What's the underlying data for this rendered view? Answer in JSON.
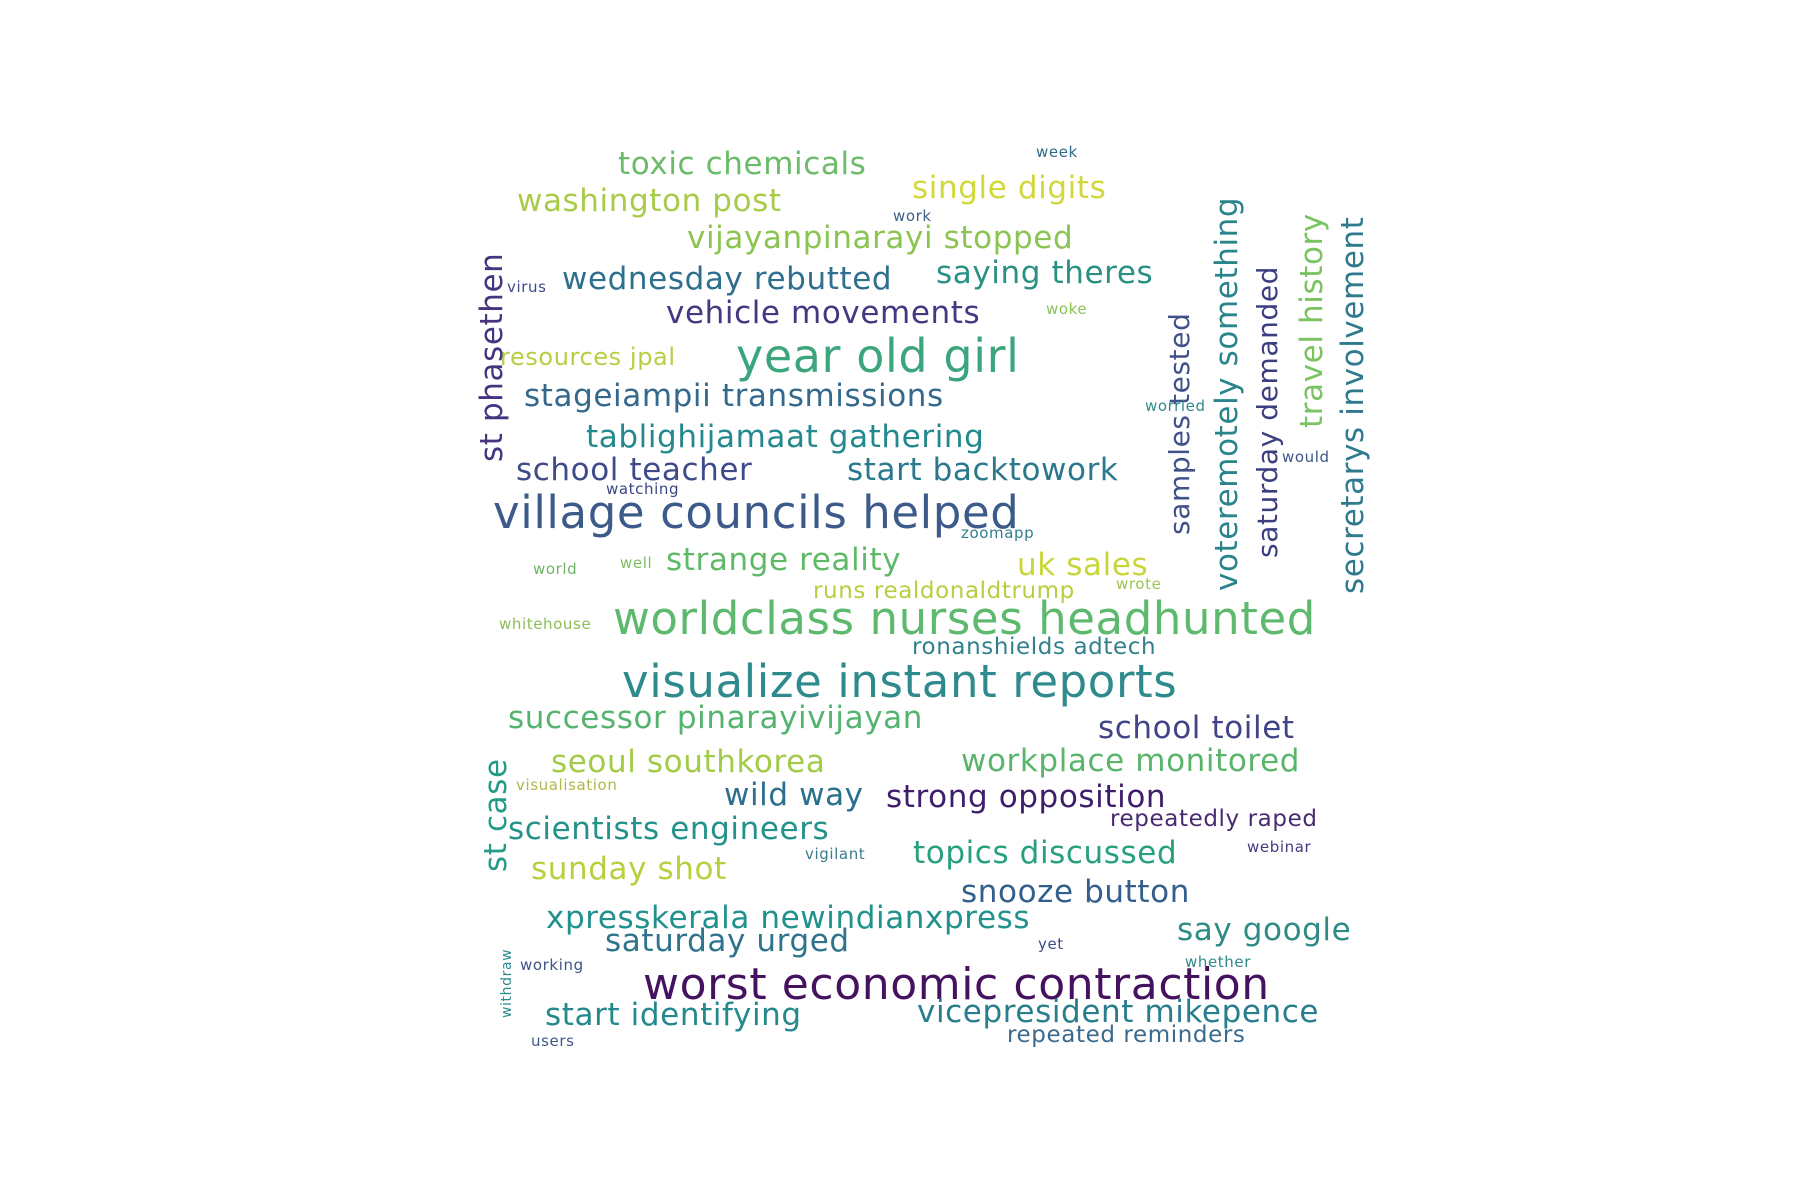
{
  "words": [
    {
      "text": "worldclass nurses headhunted",
      "color": "#5cb96d"
    },
    {
      "text": "visualize instant reports",
      "color": "#2e8a8c"
    },
    {
      "text": "worst economic contraction",
      "color": "#44125e"
    },
    {
      "text": "village councils helped",
      "color": "#3c5a8a"
    },
    {
      "text": "year old girl",
      "color": "#3ba67c"
    },
    {
      "text": "toxic chemicals",
      "color": "#6bbb6a"
    },
    {
      "text": "washington post",
      "color": "#a8cc4a"
    },
    {
      "text": "single digits",
      "color": "#d2d83b"
    },
    {
      "text": "vijayanpinarayi stopped",
      "color": "#8cc452"
    },
    {
      "text": "wednesday rebutted",
      "color": "#2f6f8e"
    },
    {
      "text": "saying theres",
      "color": "#2a9083"
    },
    {
      "text": "vehicle movements",
      "color": "#453781"
    },
    {
      "text": "resources jpal",
      "color": "#b5cf43"
    },
    {
      "text": "stageiampii transmissions",
      "color": "#33698c"
    },
    {
      "text": "tablighijamaat gathering",
      "color": "#23898e"
    },
    {
      "text": "school teacher",
      "color": "#3f4a8a"
    },
    {
      "text": "start backtowork",
      "color": "#2a788e"
    },
    {
      "text": "strange reality",
      "color": "#5fba68"
    },
    {
      "text": "uk sales",
      "color": "#c8d63a"
    },
    {
      "text": "runs realdonaldtrump",
      "color": "#b4d040"
    },
    {
      "text": "ronanshields adtech",
      "color": "#31808c"
    },
    {
      "text": "successor pinarayivijayan",
      "color": "#54b46f"
    },
    {
      "text": "school toilet",
      "color": "#414487"
    },
    {
      "text": "seoul southkorea",
      "color": "#a2cb48"
    },
    {
      "text": "workplace monitored",
      "color": "#5ab56b"
    },
    {
      "text": "wild way",
      "color": "#2b6e8e"
    },
    {
      "text": "strong opposition",
      "color": "#3e1e6c"
    },
    {
      "text": "scientists engineers",
      "color": "#23928a"
    },
    {
      "text": "repeatedly raped",
      "color": "#472a70"
    },
    {
      "text": "sunday shot",
      "color": "#b8cf3e"
    },
    {
      "text": "topics discussed",
      "color": "#26a07e"
    },
    {
      "text": "snooze button",
      "color": "#345f8d"
    },
    {
      "text": "xpresskerala newindianxpress",
      "color": "#21918c"
    },
    {
      "text": "say google",
      "color": "#2e8b85"
    },
    {
      "text": "saturday urged",
      "color": "#2f738d"
    },
    {
      "text": "start identifying",
      "color": "#24898c"
    },
    {
      "text": "vicepresident mikepence",
      "color": "#287e8e"
    },
    {
      "text": "repeated reminders",
      "color": "#3b6a8c"
    },
    {
      "text": "st phasethen",
      "color": "#463480"
    },
    {
      "text": "st case",
      "color": "#239b87"
    },
    {
      "text": "samples tested",
      "color": "#3f5288"
    },
    {
      "text": "voteremotely something",
      "color": "#29858b"
    },
    {
      "text": "saturday demanded",
      "color": "#3b3f80"
    },
    {
      "text": "travel history",
      "color": "#7ac361"
    },
    {
      "text": "secretarys involvement",
      "color": "#2f7a8d"
    },
    {
      "text": "withdraw",
      "color": "#2c8a8c"
    },
    {
      "text": "week",
      "color": "#2f6b8c"
    },
    {
      "text": "work",
      "color": "#3c6089"
    },
    {
      "text": "virus",
      "color": "#3e4a89"
    },
    {
      "text": "woke",
      "color": "#8cc356"
    },
    {
      "text": "worried",
      "color": "#2f8b8a"
    },
    {
      "text": "would",
      "color": "#3c5689"
    },
    {
      "text": "watching",
      "color": "#3a4485"
    },
    {
      "text": "zoomapp",
      "color": "#2d7d8d"
    },
    {
      "text": "world",
      "color": "#6fb565"
    },
    {
      "text": "well",
      "color": "#7cbd5f"
    },
    {
      "text": "wrote",
      "color": "#9ac54f"
    },
    {
      "text": "whitehouse",
      "color": "#8cbd57"
    },
    {
      "text": "visualisation",
      "color": "#b0b848"
    },
    {
      "text": "vigilant",
      "color": "#3a7a8c"
    },
    {
      "text": "webinar",
      "color": "#413c82"
    },
    {
      "text": "working",
      "color": "#3a5489"
    },
    {
      "text": "yet",
      "color": "#3b4b88"
    },
    {
      "text": "whether",
      "color": "#2a8a89"
    },
    {
      "text": "users",
      "color": "#3e5788"
    }
  ]
}
